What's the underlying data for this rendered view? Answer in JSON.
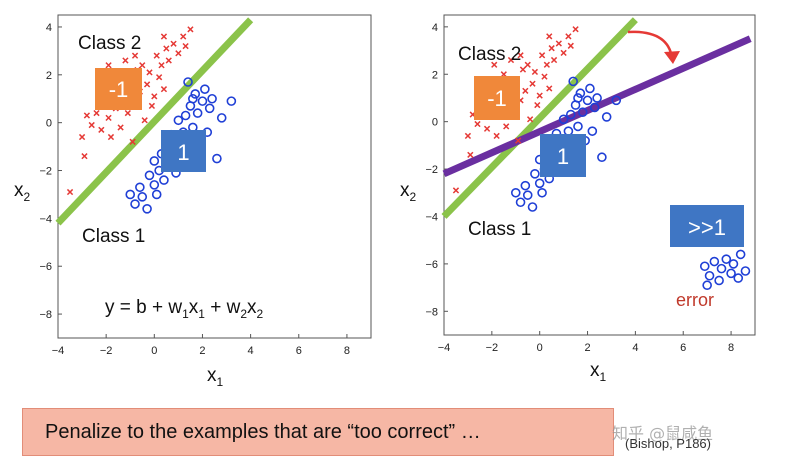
{
  "colors": {
    "class2": "#e53935",
    "class1": "#1f3fd6",
    "green_line": "#8bc34a",
    "purple_line": "#6a2fa0",
    "box_orange": "#f0883a",
    "box_blue": "#3f76c4",
    "arrow": "#e53935"
  },
  "banner": {
    "text": "Penalize to the examples that are “too correct” …"
  },
  "watermark": "知乎 @鼠咸鱼",
  "citation": "(Bishop, P186)",
  "chart_data": [
    {
      "type": "scatter",
      "xlabel": "x",
      "xlabel_sub": "1",
      "ylabel": "x",
      "ylabel_sub": "2",
      "xlim": [
        -4,
        9
      ],
      "ylim": [
        -9,
        4.5
      ],
      "xticks": [
        -4,
        -2,
        0,
        2,
        4,
        6,
        8
      ],
      "yticks": [
        4,
        2,
        0,
        -2,
        -4,
        -6,
        -8
      ],
      "labels": {
        "class2": "Class 2",
        "class1": "Class 1",
        "box_neg": "-1",
        "box_pos": "1"
      },
      "equation": {
        "y": "y = b + w",
        "w1_sub": "1",
        "x1": "x",
        "x1_sub": "1",
        "plus": " + w",
        "w2_sub": "2",
        "x2": "x",
        "x2_sub": "2"
      },
      "green_line": [
        [
          -4,
          -4.2
        ],
        [
          4,
          4.3
        ]
      ],
      "series": [
        {
          "marker": "x",
          "points": [
            [
              -3.5,
              -2.9
            ],
            [
              -3.0,
              -0.6
            ],
            [
              -2.8,
              0.3
            ],
            [
              -2.6,
              -0.1
            ],
            [
              -2.4,
              0.4
            ],
            [
              -2.2,
              -0.3
            ],
            [
              -2.0,
              0.9
            ],
            [
              -1.9,
              0.2
            ],
            [
              -1.8,
              -0.6
            ],
            [
              -1.7,
              1.4
            ],
            [
              -1.6,
              0.6
            ],
            [
              -1.5,
              2.0
            ],
            [
              -1.4,
              -0.2
            ],
            [
              -1.3,
              1.1
            ],
            [
              -1.2,
              2.6
            ],
            [
              -1.1,
              0.4
            ],
            [
              -1.0,
              1.7
            ],
            [
              -0.9,
              -0.8
            ],
            [
              -0.8,
              0.9
            ],
            [
              -0.7,
              2.2
            ],
            [
              -0.6,
              1.3
            ],
            [
              -0.5,
              2.4
            ],
            [
              -0.4,
              0.1
            ],
            [
              -0.3,
              1.6
            ],
            [
              -0.2,
              2.1
            ],
            [
              -0.1,
              0.7
            ],
            [
              0.0,
              1.1
            ],
            [
              0.1,
              2.8
            ],
            [
              0.2,
              1.9
            ],
            [
              0.3,
              2.4
            ],
            [
              0.4,
              1.4
            ],
            [
              0.5,
              3.1
            ],
            [
              0.6,
              2.6
            ],
            [
              0.8,
              3.3
            ],
            [
              1.0,
              2.9
            ],
            [
              1.2,
              3.6
            ],
            [
              1.3,
              3.2
            ],
            [
              1.5,
              3.9
            ],
            [
              -2.9,
              -1.4
            ],
            [
              -1.9,
              2.4
            ],
            [
              -0.8,
              2.8
            ],
            [
              0.4,
              3.6
            ]
          ]
        },
        {
          "marker": "o",
          "points": [
            [
              -1.0,
              -3.0
            ],
            [
              -0.8,
              -3.4
            ],
            [
              -0.6,
              -2.7
            ],
            [
              -0.5,
              -3.1
            ],
            [
              -0.3,
              -3.6
            ],
            [
              -0.2,
              -2.2
            ],
            [
              0.0,
              -2.6
            ],
            [
              0.0,
              -1.6
            ],
            [
              0.1,
              -3.0
            ],
            [
              0.2,
              -2.0
            ],
            [
              0.3,
              -1.3
            ],
            [
              0.4,
              -2.4
            ],
            [
              0.5,
              -0.8
            ],
            [
              0.6,
              -1.7
            ],
            [
              0.7,
              -0.5
            ],
            [
              0.8,
              -1.2
            ],
            [
              0.9,
              -2.1
            ],
            [
              1.0,
              0.1
            ],
            [
              1.1,
              -0.9
            ],
            [
              1.2,
              -0.4
            ],
            [
              1.3,
              0.3
            ],
            [
              1.4,
              -1.6
            ],
            [
              1.5,
              0.7
            ],
            [
              1.6,
              -0.2
            ],
            [
              1.7,
              1.2
            ],
            [
              1.8,
              0.4
            ],
            [
              1.9,
              -0.8
            ],
            [
              2.0,
              0.9
            ],
            [
              2.1,
              1.4
            ],
            [
              2.2,
              -0.4
            ],
            [
              2.3,
              0.6
            ],
            [
              2.4,
              1.0
            ],
            [
              2.6,
              -1.5
            ],
            [
              2.8,
              0.2
            ],
            [
              3.2,
              0.9
            ],
            [
              1.4,
              1.7
            ],
            [
              1.6,
              1.0
            ]
          ]
        }
      ]
    },
    {
      "type": "scatter",
      "xlabel": "x",
      "xlabel_sub": "1",
      "ylabel": "x",
      "ylabel_sub": "2",
      "xlim": [
        -4,
        9
      ],
      "ylim": [
        -9,
        4.5
      ],
      "xticks": [
        -4,
        -2,
        0,
        2,
        4,
        6,
        8
      ],
      "yticks": [
        4,
        2,
        0,
        -2,
        -4,
        -6,
        -8
      ],
      "labels": {
        "class2": "Class 2",
        "class1": "Class 1",
        "box_neg": "-1",
        "box_pos": "1",
        "box_far": ">>1",
        "error": "error"
      },
      "green_line": [
        [
          -4,
          -4.0
        ],
        [
          4,
          4.3
        ]
      ],
      "purple_line": [
        [
          -4,
          -2.2
        ],
        [
          8.8,
          3.5
        ]
      ],
      "series": [
        {
          "marker": "x",
          "points": [
            [
              -3.5,
              -2.9
            ],
            [
              -3.0,
              -0.6
            ],
            [
              -2.8,
              0.3
            ],
            [
              -2.6,
              -0.1
            ],
            [
              -2.4,
              0.4
            ],
            [
              -2.2,
              -0.3
            ],
            [
              -2.0,
              0.9
            ],
            [
              -1.9,
              0.2
            ],
            [
              -1.8,
              -0.6
            ],
            [
              -1.7,
              1.4
            ],
            [
              -1.6,
              0.6
            ],
            [
              -1.5,
              2.0
            ],
            [
              -1.4,
              -0.2
            ],
            [
              -1.3,
              1.1
            ],
            [
              -1.2,
              2.6
            ],
            [
              -1.1,
              0.4
            ],
            [
              -1.0,
              1.7
            ],
            [
              -0.9,
              -0.8
            ],
            [
              -0.8,
              0.9
            ],
            [
              -0.7,
              2.2
            ],
            [
              -0.6,
              1.3
            ],
            [
              -0.5,
              2.4
            ],
            [
              -0.4,
              0.1
            ],
            [
              -0.3,
              1.6
            ],
            [
              -0.2,
              2.1
            ],
            [
              -0.1,
              0.7
            ],
            [
              0.0,
              1.1
            ],
            [
              0.1,
              2.8
            ],
            [
              0.2,
              1.9
            ],
            [
              0.3,
              2.4
            ],
            [
              0.4,
              1.4
            ],
            [
              0.5,
              3.1
            ],
            [
              0.6,
              2.6
            ],
            [
              0.8,
              3.3
            ],
            [
              1.0,
              2.9
            ],
            [
              1.2,
              3.6
            ],
            [
              1.3,
              3.2
            ],
            [
              1.5,
              3.9
            ],
            [
              -2.9,
              -1.4
            ],
            [
              -1.9,
              2.4
            ],
            [
              -0.8,
              2.8
            ],
            [
              0.4,
              3.6
            ]
          ]
        },
        {
          "marker": "o",
          "points": [
            [
              -1.0,
              -3.0
            ],
            [
              -0.8,
              -3.4
            ],
            [
              -0.6,
              -2.7
            ],
            [
              -0.5,
              -3.1
            ],
            [
              -0.3,
              -3.6
            ],
            [
              -0.2,
              -2.2
            ],
            [
              0.0,
              -2.6
            ],
            [
              0.0,
              -1.6
            ],
            [
              0.1,
              -3.0
            ],
            [
              0.2,
              -2.0
            ],
            [
              0.3,
              -1.3
            ],
            [
              0.4,
              -2.4
            ],
            [
              0.5,
              -0.8
            ],
            [
              0.6,
              -1.7
            ],
            [
              0.7,
              -0.5
            ],
            [
              0.8,
              -1.2
            ],
            [
              0.9,
              -2.1
            ],
            [
              1.0,
              0.1
            ],
            [
              1.1,
              -0.9
            ],
            [
              1.2,
              -0.4
            ],
            [
              1.3,
              0.3
            ],
            [
              1.4,
              -1.6
            ],
            [
              1.5,
              0.7
            ],
            [
              1.6,
              -0.2
            ],
            [
              1.7,
              1.2
            ],
            [
              1.8,
              0.4
            ],
            [
              1.9,
              -0.8
            ],
            [
              2.0,
              0.9
            ],
            [
              2.1,
              1.4
            ],
            [
              2.2,
              -0.4
            ],
            [
              2.3,
              0.6
            ],
            [
              2.4,
              1.0
            ],
            [
              2.6,
              -1.5
            ],
            [
              2.8,
              0.2
            ],
            [
              3.2,
              0.9
            ],
            [
              1.4,
              1.7
            ],
            [
              1.6,
              1.0
            ],
            [
              6.9,
              -6.1
            ],
            [
              7.1,
              -6.5
            ],
            [
              7.3,
              -5.9
            ],
            [
              7.5,
              -6.7
            ],
            [
              7.6,
              -6.2
            ],
            [
              7.8,
              -5.8
            ],
            [
              8.0,
              -6.4
            ],
            [
              8.1,
              -6.0
            ],
            [
              8.3,
              -6.6
            ],
            [
              8.4,
              -5.6
            ],
            [
              8.6,
              -6.3
            ],
            [
              7.0,
              -6.9
            ]
          ]
        }
      ]
    }
  ]
}
